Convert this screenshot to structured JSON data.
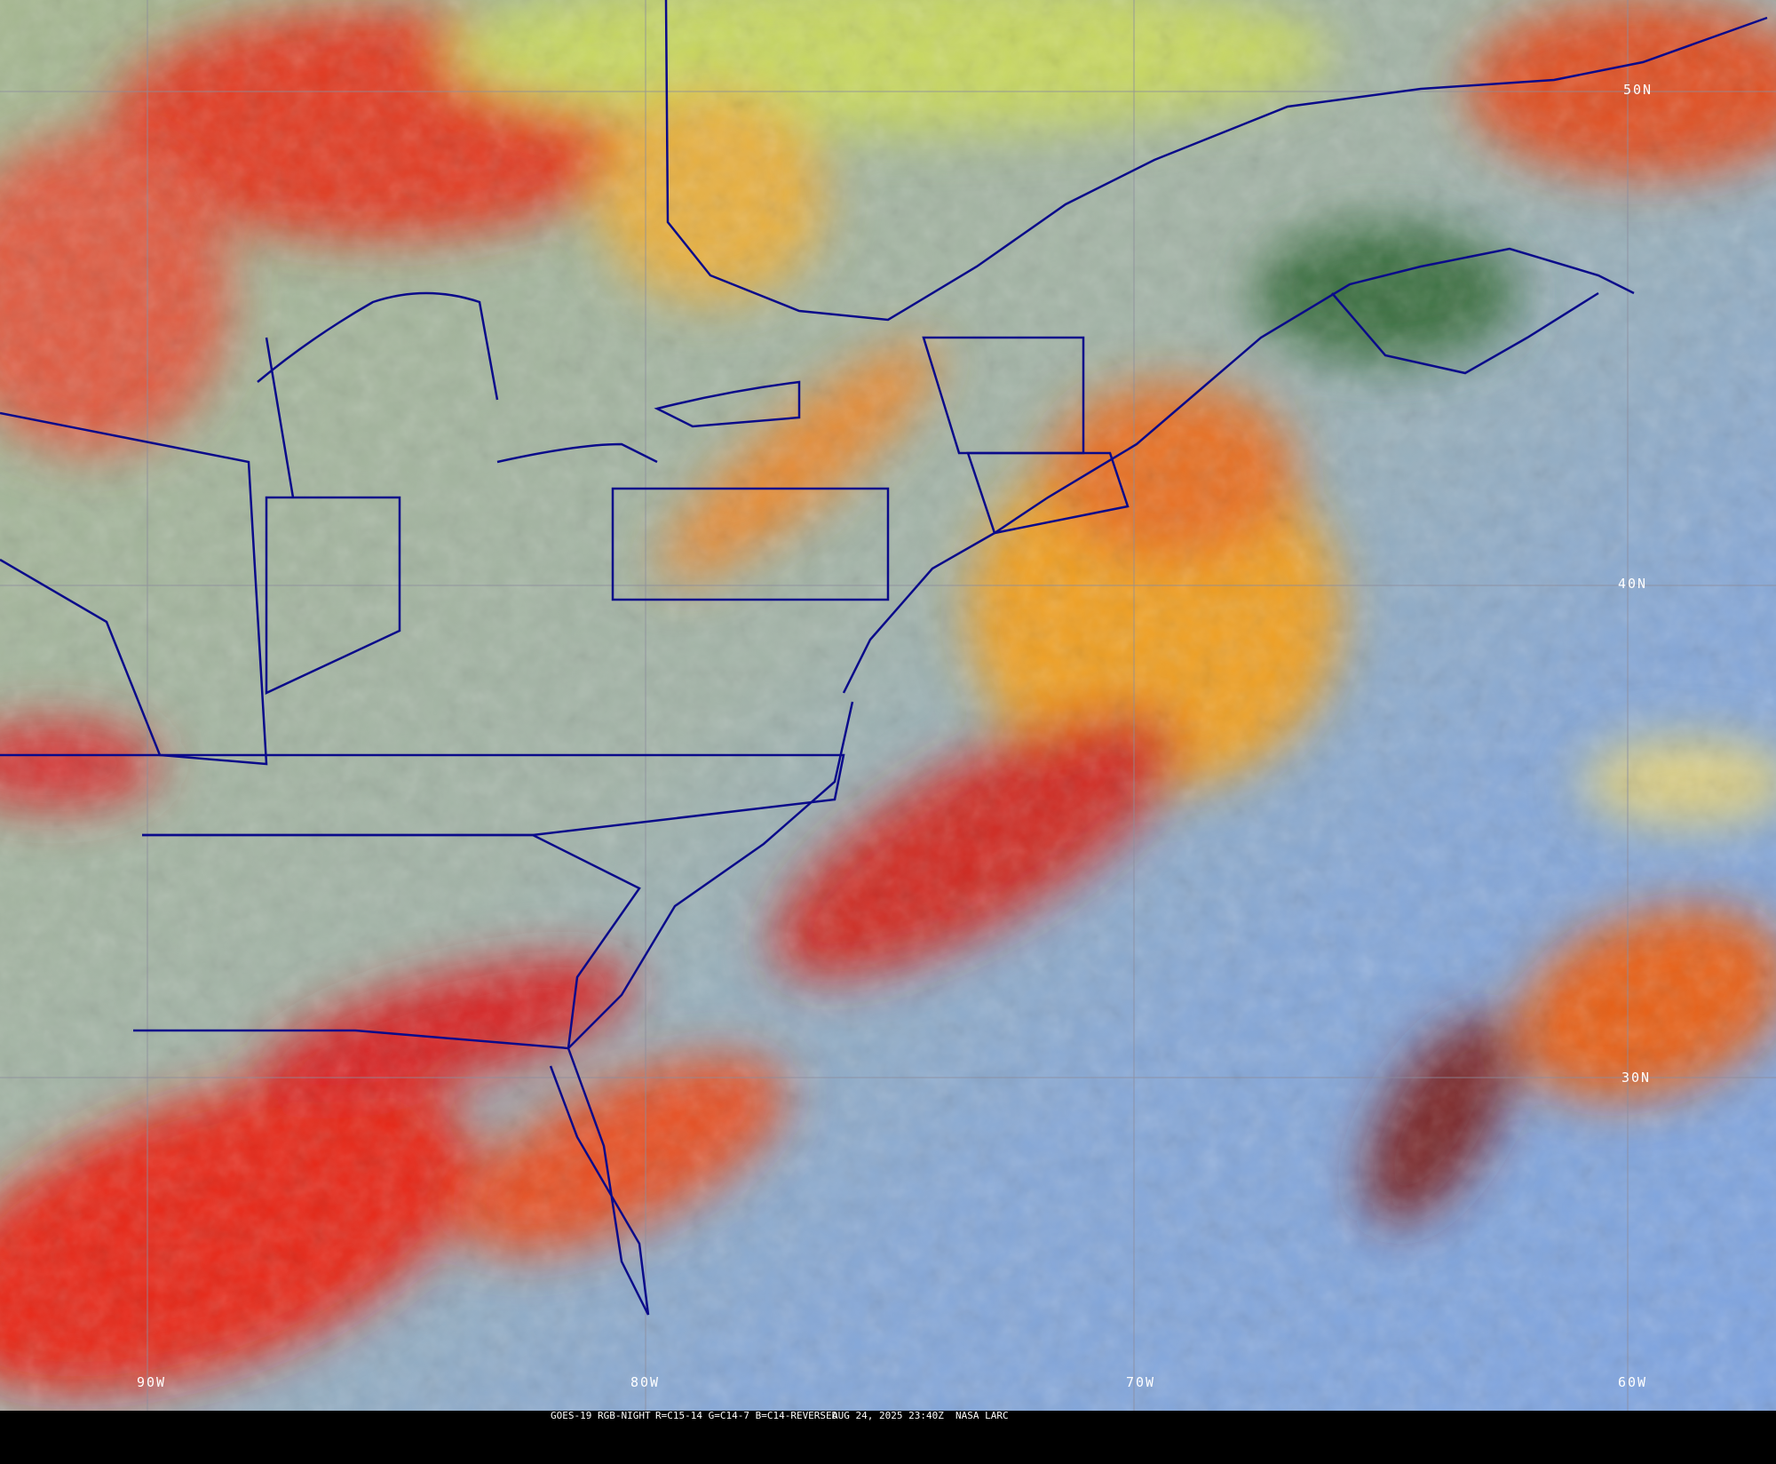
{
  "caption": {
    "satellite": "GOES-19 RGB-NIGHT",
    "channels": "R=C15-14 G=C14-7 B=C14-REVERSED",
    "datetime": "AUG 24, 2025 23:40Z",
    "credit": "NASA LARC"
  },
  "grid_labels": {
    "lat": [
      "50N",
      "40N",
      "30N"
    ],
    "lon": [
      "90W",
      "80W",
      "70W",
      "60W"
    ]
  },
  "colors": {
    "ocean_clear": "#7fa6e0",
    "land_clear": "#9fb0a0",
    "low_cloud": "#c8d060",
    "high_cloud_warm": "#f0a020",
    "high_cloud_cold": "#e02020",
    "borders": "#0a0a8a",
    "grid": "#8c8c9c"
  }
}
